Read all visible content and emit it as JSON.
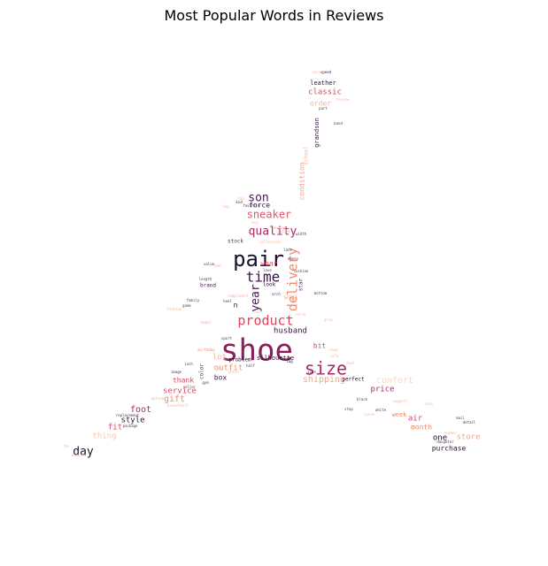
{
  "title": "Most Popular Words in Reviews",
  "words": [
    {
      "text": "shoe",
      "color": "#8a1f5c"
    },
    {
      "text": "pair",
      "color": "#1a1030"
    },
    {
      "text": "size",
      "color": "#a4295f"
    },
    {
      "text": "product",
      "color": "#d9465e"
    },
    {
      "text": "time",
      "color": "#3a1346"
    },
    {
      "text": "delivery",
      "color": "#f08a6a"
    },
    {
      "text": "quality",
      "color": "#a62d62"
    },
    {
      "text": "sneaker",
      "color": "#e0566b"
    },
    {
      "text": "son",
      "color": "#4a1553"
    },
    {
      "text": "year",
      "color": "#4a1553"
    },
    {
      "text": "day",
      "color": "#1a1030"
    },
    {
      "text": "husband",
      "color": "#3a1346"
    },
    {
      "text": "shipping",
      "color": "#f7a488"
    },
    {
      "text": "classic",
      "color": "#d9465e"
    },
    {
      "text": "leather",
      "color": "#2a1238"
    },
    {
      "text": "order",
      "color": "#f7b49b"
    },
    {
      "text": "grandson",
      "color": "#3a1346"
    },
    {
      "text": "condition",
      "color": "#f7a488"
    },
    {
      "text": "force",
      "color": "#2a1238"
    },
    {
      "text": "stock",
      "color": "#4a3a52"
    },
    {
      "text": "wear",
      "color": "#e0566b"
    },
    {
      "text": "way",
      "color": "#f7b49b"
    },
    {
      "text": "look",
      "color": "#2a1238"
    },
    {
      "text": "star",
      "color": "#4a1553"
    },
    {
      "text": "brand",
      "color": "#4a1553"
    },
    {
      "text": "silhouette",
      "color": "#2a1238"
    },
    {
      "text": "problem",
      "color": "#2a1238"
    },
    {
      "text": "bit",
      "color": "#d9465e"
    },
    {
      "text": "lot",
      "color": "#f7b49b"
    },
    {
      "text": "outfit",
      "color": "#f08a6a"
    },
    {
      "text": "box",
      "color": "#4a1553"
    },
    {
      "text": "thank",
      "color": "#d9465e"
    },
    {
      "text": "service",
      "color": "#d9465e"
    },
    {
      "text": "gift",
      "color": "#f08a6a"
    },
    {
      "text": "foot",
      "color": "#a62d62"
    },
    {
      "text": "style",
      "color": "#2a1238"
    },
    {
      "text": "fit",
      "color": "#d9465e"
    },
    {
      "text": "thing",
      "color": "#f7c8b0"
    },
    {
      "text": "price",
      "color": "#a62d62"
    },
    {
      "text": "perfect",
      "color": "#2a1238"
    },
    {
      "text": "comfort",
      "color": "#f9d8c4"
    },
    {
      "text": "week",
      "color": "#f08a6a"
    },
    {
      "text": "air",
      "color": "#d9465e"
    },
    {
      "text": "month",
      "color": "#f08a6a"
    },
    {
      "text": "one",
      "color": "#1a1030"
    },
    {
      "text": "store",
      "color": "#f7a488"
    },
    {
      "text": "purchase",
      "color": "#2a1238"
    },
    {
      "text": "color",
      "color": "#4a3a52"
    },
    {
      "text": "school",
      "color": "#f7b49b"
    },
    {
      "text": "kid",
      "color": "#2a1238"
    },
    {
      "text": "family",
      "color": "#4a3a52"
    },
    {
      "text": "length",
      "color": "#4a3a52"
    },
    {
      "text": "speed",
      "color": "#2a1238"
    },
    {
      "text": "care",
      "color": "#f7b49b"
    },
    {
      "text": "sport",
      "color": "#4a3a52"
    },
    {
      "text": "daughter",
      "color": "#4a3a52"
    },
    {
      "text": "feel",
      "color": "#f7b49b"
    },
    {
      "text": "cushion",
      "color": "#4a3a52"
    },
    {
      "text": "Jordan",
      "color": "#f7b49b"
    },
    {
      "text": "package",
      "color": "#4a3a52"
    },
    {
      "text": "toe",
      "color": "#f7b49b"
    },
    {
      "text": "birthday",
      "color": "#f08a6a"
    },
    {
      "text": "replacement",
      "color": "#4a3a52"
    },
    {
      "text": "inch",
      "color": "#4a3a52"
    },
    {
      "text": "model",
      "color": "#f7b49b"
    },
    {
      "text": "image",
      "color": "#4a3a52"
    },
    {
      "text": "wife",
      "color": "#f7b49b"
    },
    {
      "text": "band",
      "color": "#4a3a52"
    },
    {
      "text": "tag",
      "color": "#2a1238"
    },
    {
      "text": "photo",
      "color": "#f7b49b"
    },
    {
      "text": "side",
      "color": "#4a3a52"
    },
    {
      "text": "issue",
      "color": "#f7b49b"
    },
    {
      "text": "money",
      "color": "#4a3a52"
    },
    {
      "text": "collection",
      "color": "#f7b49b"
    },
    {
      "text": "half",
      "color": "#4a3a52"
    },
    {
      "text": "deal",
      "color": "#f7b49b"
    },
    {
      "text": "seller",
      "color": "#4a3a52"
    },
    {
      "text": "sole",
      "color": "#f7b49b"
    },
    {
      "text": "white",
      "color": "#4a3a52"
    },
    {
      "text": "hoop",
      "color": "#f7b49b"
    },
    {
      "text": "game",
      "color": "#4a3a52"
    },
    {
      "text": "fan",
      "color": "#f7b49b"
    },
    {
      "text": "lace",
      "color": "#4a3a52"
    },
    {
      "text": "court",
      "color": "#f7b49b"
    },
    {
      "text": "favorite",
      "color": "#4a3a52"
    },
    {
      "text": "design",
      "color": "#f7b49b"
    },
    {
      "text": "love",
      "color": "#4a3a52"
    },
    {
      "text": "basketball",
      "color": "#f7b49b"
    },
    {
      "text": "part",
      "color": "#4a3a52"
    },
    {
      "text": "review",
      "color": "#f7b49b"
    },
    {
      "text": "arch",
      "color": "#4a3a52"
    },
    {
      "text": "retro",
      "color": "#f7b49b"
    },
    {
      "text": "heel",
      "color": "#4a3a52"
    },
    {
      "text": "boy",
      "color": "#f7b49b"
    },
    {
      "text": "gym",
      "color": "#4a3a52"
    },
    {
      "text": "option",
      "color": "#f7b49b"
    },
    {
      "text": "step",
      "color": "#4a3a52"
    },
    {
      "text": "support",
      "color": "#f7b49b"
    },
    {
      "text": "mail",
      "color": "#4a3a52"
    },
    {
      "text": "picture",
      "color": "#f7b49b"
    },
    {
      "text": "detail",
      "color": "#4a3a52"
    },
    {
      "text": "summer",
      "color": "#f7b49b"
    },
    {
      "text": "black",
      "color": "#4a3a52"
    },
    {
      "text": "fashion",
      "color": "#f7b49b"
    },
    {
      "text": "value",
      "color": "#4a3a52"
    },
    {
      "text": "top",
      "color": "#f7b49b"
    },
    {
      "text": "width",
      "color": "#4a3a52"
    },
    {
      "text": "compliment",
      "color": "#f7b49b"
    },
    {
      "text": "bottom",
      "color": "#4a3a52"
    },
    {
      "text": "grip",
      "color": "#f7b49b"
    },
    {
      "text": "n",
      "color": "#2a1238"
    }
  ]
}
